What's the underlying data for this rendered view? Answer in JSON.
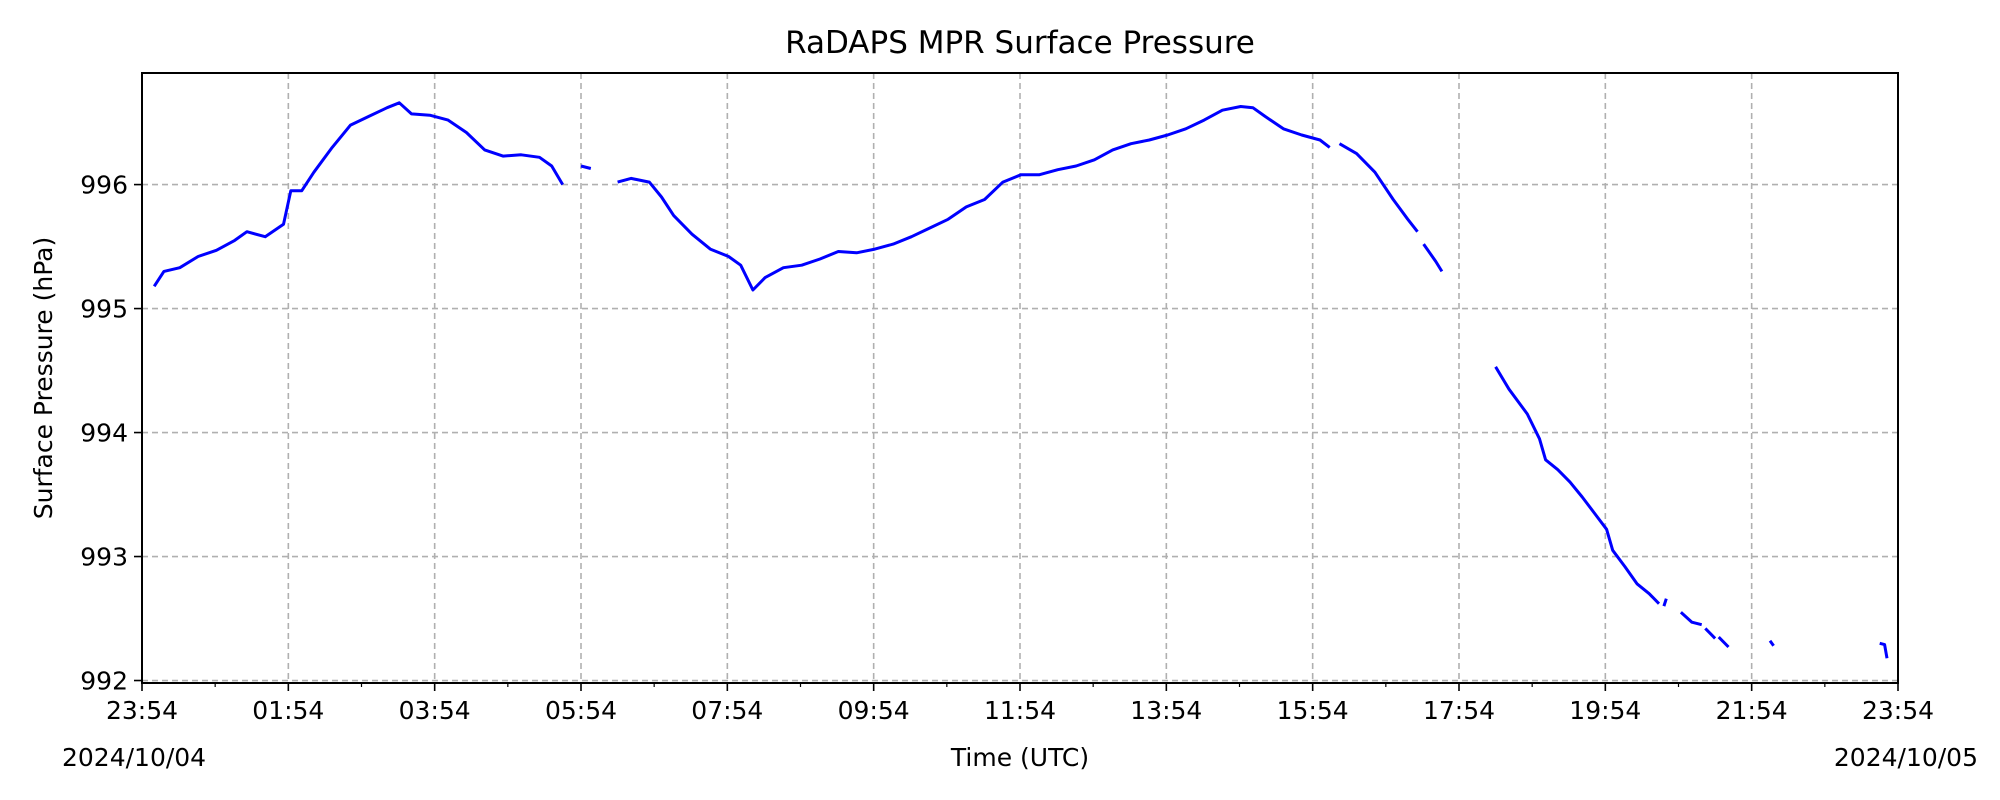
{
  "chart_data": {
    "type": "line",
    "title": "RaDAPS MPR Surface Pressure",
    "xlabel": "Time (UTC)",
    "ylabel": "Surface Pressure (hPa)",
    "xlim": [
      "2024-10-04 23:54",
      "2024-10-05 23:54"
    ],
    "ylim": [
      991.98,
      996.9
    ],
    "grid": true,
    "x_ticks": [
      "23:54",
      "01:54",
      "03:54",
      "05:54",
      "07:54",
      "09:54",
      "11:54",
      "13:54",
      "15:54",
      "17:54",
      "19:54",
      "21:54",
      "23:54"
    ],
    "y_ticks": [
      992,
      993,
      994,
      995,
      996
    ],
    "date_left": "2024/10/04",
    "date_right": "2024/10/05",
    "series": [
      {
        "color": "#0000ff",
        "segments": [
          [
            [
              "2024-10-05 00:04",
              995.18
            ],
            [
              "2024-10-05 00:12",
              995.3
            ],
            [
              "2024-10-05 00:25",
              995.33
            ],
            [
              "2024-10-05 00:40",
              995.42
            ],
            [
              "2024-10-05 00:55",
              995.47
            ],
            [
              "2024-10-05 01:10",
              995.55
            ],
            [
              "2024-10-05 01:20",
              995.62
            ],
            [
              "2024-10-05 01:35",
              995.58
            ],
            [
              "2024-10-05 01:50",
              995.68
            ],
            [
              "2024-10-05 01:56",
              995.95
            ],
            [
              "2024-10-05 02:05",
              995.95
            ],
            [
              "2024-10-05 02:15",
              996.1
            ],
            [
              "2024-10-05 02:30",
              996.3
            ],
            [
              "2024-10-05 02:45",
              996.48
            ],
            [
              "2024-10-05 03:00",
              996.55
            ],
            [
              "2024-10-05 03:15",
              996.62
            ],
            [
              "2024-10-05 03:25",
              996.66
            ],
            [
              "2024-10-05 03:35",
              996.57
            ],
            [
              "2024-10-05 03:50",
              996.56
            ],
            [
              "2024-10-05 04:05",
              996.52
            ],
            [
              "2024-10-05 04:20",
              996.42
            ],
            [
              "2024-10-05 04:35",
              996.28
            ],
            [
              "2024-10-05 04:50",
              996.23
            ],
            [
              "2024-10-05 05:05",
              996.24
            ],
            [
              "2024-10-05 05:20",
              996.22
            ],
            [
              "2024-10-05 05:30",
              996.15
            ],
            [
              "2024-10-05 05:39",
              996.0
            ]
          ],
          [
            [
              "2024-10-05 05:54",
              996.15
            ],
            [
              "2024-10-05 06:02",
              996.13
            ]
          ],
          [
            [
              "2024-10-05 06:24",
              996.02
            ],
            [
              "2024-10-05 06:35",
              996.05
            ],
            [
              "2024-10-05 06:50",
              996.02
            ],
            [
              "2024-10-05 07:00",
              995.9
            ],
            [
              "2024-10-05 07:10",
              995.75
            ],
            [
              "2024-10-05 07:25",
              995.6
            ],
            [
              "2024-10-05 07:40",
              995.48
            ],
            [
              "2024-10-05 07:55",
              995.42
            ],
            [
              "2024-10-05 08:05",
              995.35
            ],
            [
              "2024-10-05 08:15",
              995.15
            ],
            [
              "2024-10-05 08:25",
              995.25
            ],
            [
              "2024-10-05 08:40",
              995.33
            ],
            [
              "2024-10-05 08:55",
              995.35
            ],
            [
              "2024-10-05 09:10",
              995.4
            ],
            [
              "2024-10-05 09:25",
              995.46
            ],
            [
              "2024-10-05 09:40",
              995.45
            ],
            [
              "2024-10-05 09:55",
              995.48
            ],
            [
              "2024-10-05 10:10",
              995.52
            ],
            [
              "2024-10-05 10:25",
              995.58
            ],
            [
              "2024-10-05 10:40",
              995.65
            ],
            [
              "2024-10-05 10:55",
              995.72
            ],
            [
              "2024-10-05 11:10",
              995.82
            ],
            [
              "2024-10-05 11:25",
              995.88
            ],
            [
              "2024-10-05 11:40",
              996.02
            ],
            [
              "2024-10-05 11:55",
              996.08
            ],
            [
              "2024-10-05 12:10",
              996.08
            ],
            [
              "2024-10-05 12:25",
              996.12
            ],
            [
              "2024-10-05 12:40",
              996.15
            ],
            [
              "2024-10-05 12:55",
              996.2
            ],
            [
              "2024-10-05 13:10",
              996.28
            ],
            [
              "2024-10-05 13:25",
              996.33
            ],
            [
              "2024-10-05 13:40",
              996.36
            ],
            [
              "2024-10-05 13:55",
              996.4
            ],
            [
              "2024-10-05 14:10",
              996.45
            ],
            [
              "2024-10-05 14:25",
              996.52
            ],
            [
              "2024-10-05 14:40",
              996.6
            ],
            [
              "2024-10-05 14:55",
              996.63
            ],
            [
              "2024-10-05 15:05",
              996.62
            ],
            [
              "2024-10-05 15:15",
              996.55
            ],
            [
              "2024-10-05 15:30",
              996.45
            ],
            [
              "2024-10-05 15:45",
              996.4
            ],
            [
              "2024-10-05 16:00",
              996.36
            ],
            [
              "2024-10-05 16:08",
              996.3
            ]
          ],
          [
            [
              "2024-10-05 16:16",
              996.33
            ],
            [
              "2024-10-05 16:30",
              996.25
            ],
            [
              "2024-10-05 16:45",
              996.1
            ],
            [
              "2024-10-05 17:00",
              995.88
            ],
            [
              "2024-10-05 17:12",
              995.72
            ],
            [
              "2024-10-05 17:20",
              995.62
            ]
          ],
          [
            [
              "2024-10-05 17:25",
              995.52
            ],
            [
              "2024-10-05 17:35",
              995.38
            ],
            [
              "2024-10-05 17:40",
              995.3
            ]
          ],
          [
            [
              "2024-10-05 18:24",
              994.53
            ],
            [
              "2024-10-05 18:35",
              994.35
            ],
            [
              "2024-10-05 18:50",
              994.15
            ],
            [
              "2024-10-05 19:00",
              993.95
            ],
            [
              "2024-10-05 19:05",
              993.78
            ],
            [
              "2024-10-05 19:15",
              993.7
            ],
            [
              "2024-10-05 19:25",
              993.6
            ],
            [
              "2024-10-05 19:35",
              993.48
            ],
            [
              "2024-10-05 19:45",
              993.35
            ],
            [
              "2024-10-05 19:55",
              993.22
            ],
            [
              "2024-10-05 20:00",
              993.05
            ],
            [
              "2024-10-05 20:10",
              992.92
            ],
            [
              "2024-10-05 20:20",
              992.78
            ],
            [
              "2024-10-05 20:30",
              992.7
            ],
            [
              "2024-10-05 20:38",
              992.62
            ]
          ],
          [
            [
              "2024-10-05 20:42",
              992.6
            ],
            [
              "2024-10-05 20:44",
              992.66
            ]
          ],
          [
            [
              "2024-10-05 20:56",
              992.55
            ],
            [
              "2024-10-05 21:05",
              992.47
            ],
            [
              "2024-10-05 21:13",
              992.45
            ]
          ],
          [
            [
              "2024-10-05 21:16",
              992.42
            ],
            [
              "2024-10-05 21:24",
              992.34
            ]
          ],
          [
            [
              "2024-10-05 21:27",
              992.35
            ],
            [
              "2024-10-05 21:35",
              992.27
            ]
          ],
          [
            [
              "2024-10-05 22:09",
              992.32
            ],
            [
              "2024-10-05 22:12",
              992.28
            ]
          ],
          [
            [
              "2024-10-05 23:39",
              992.3
            ],
            [
              "2024-10-05 23:43",
              992.29
            ],
            [
              "2024-10-05 23:45",
              992.18
            ]
          ]
        ]
      }
    ]
  }
}
